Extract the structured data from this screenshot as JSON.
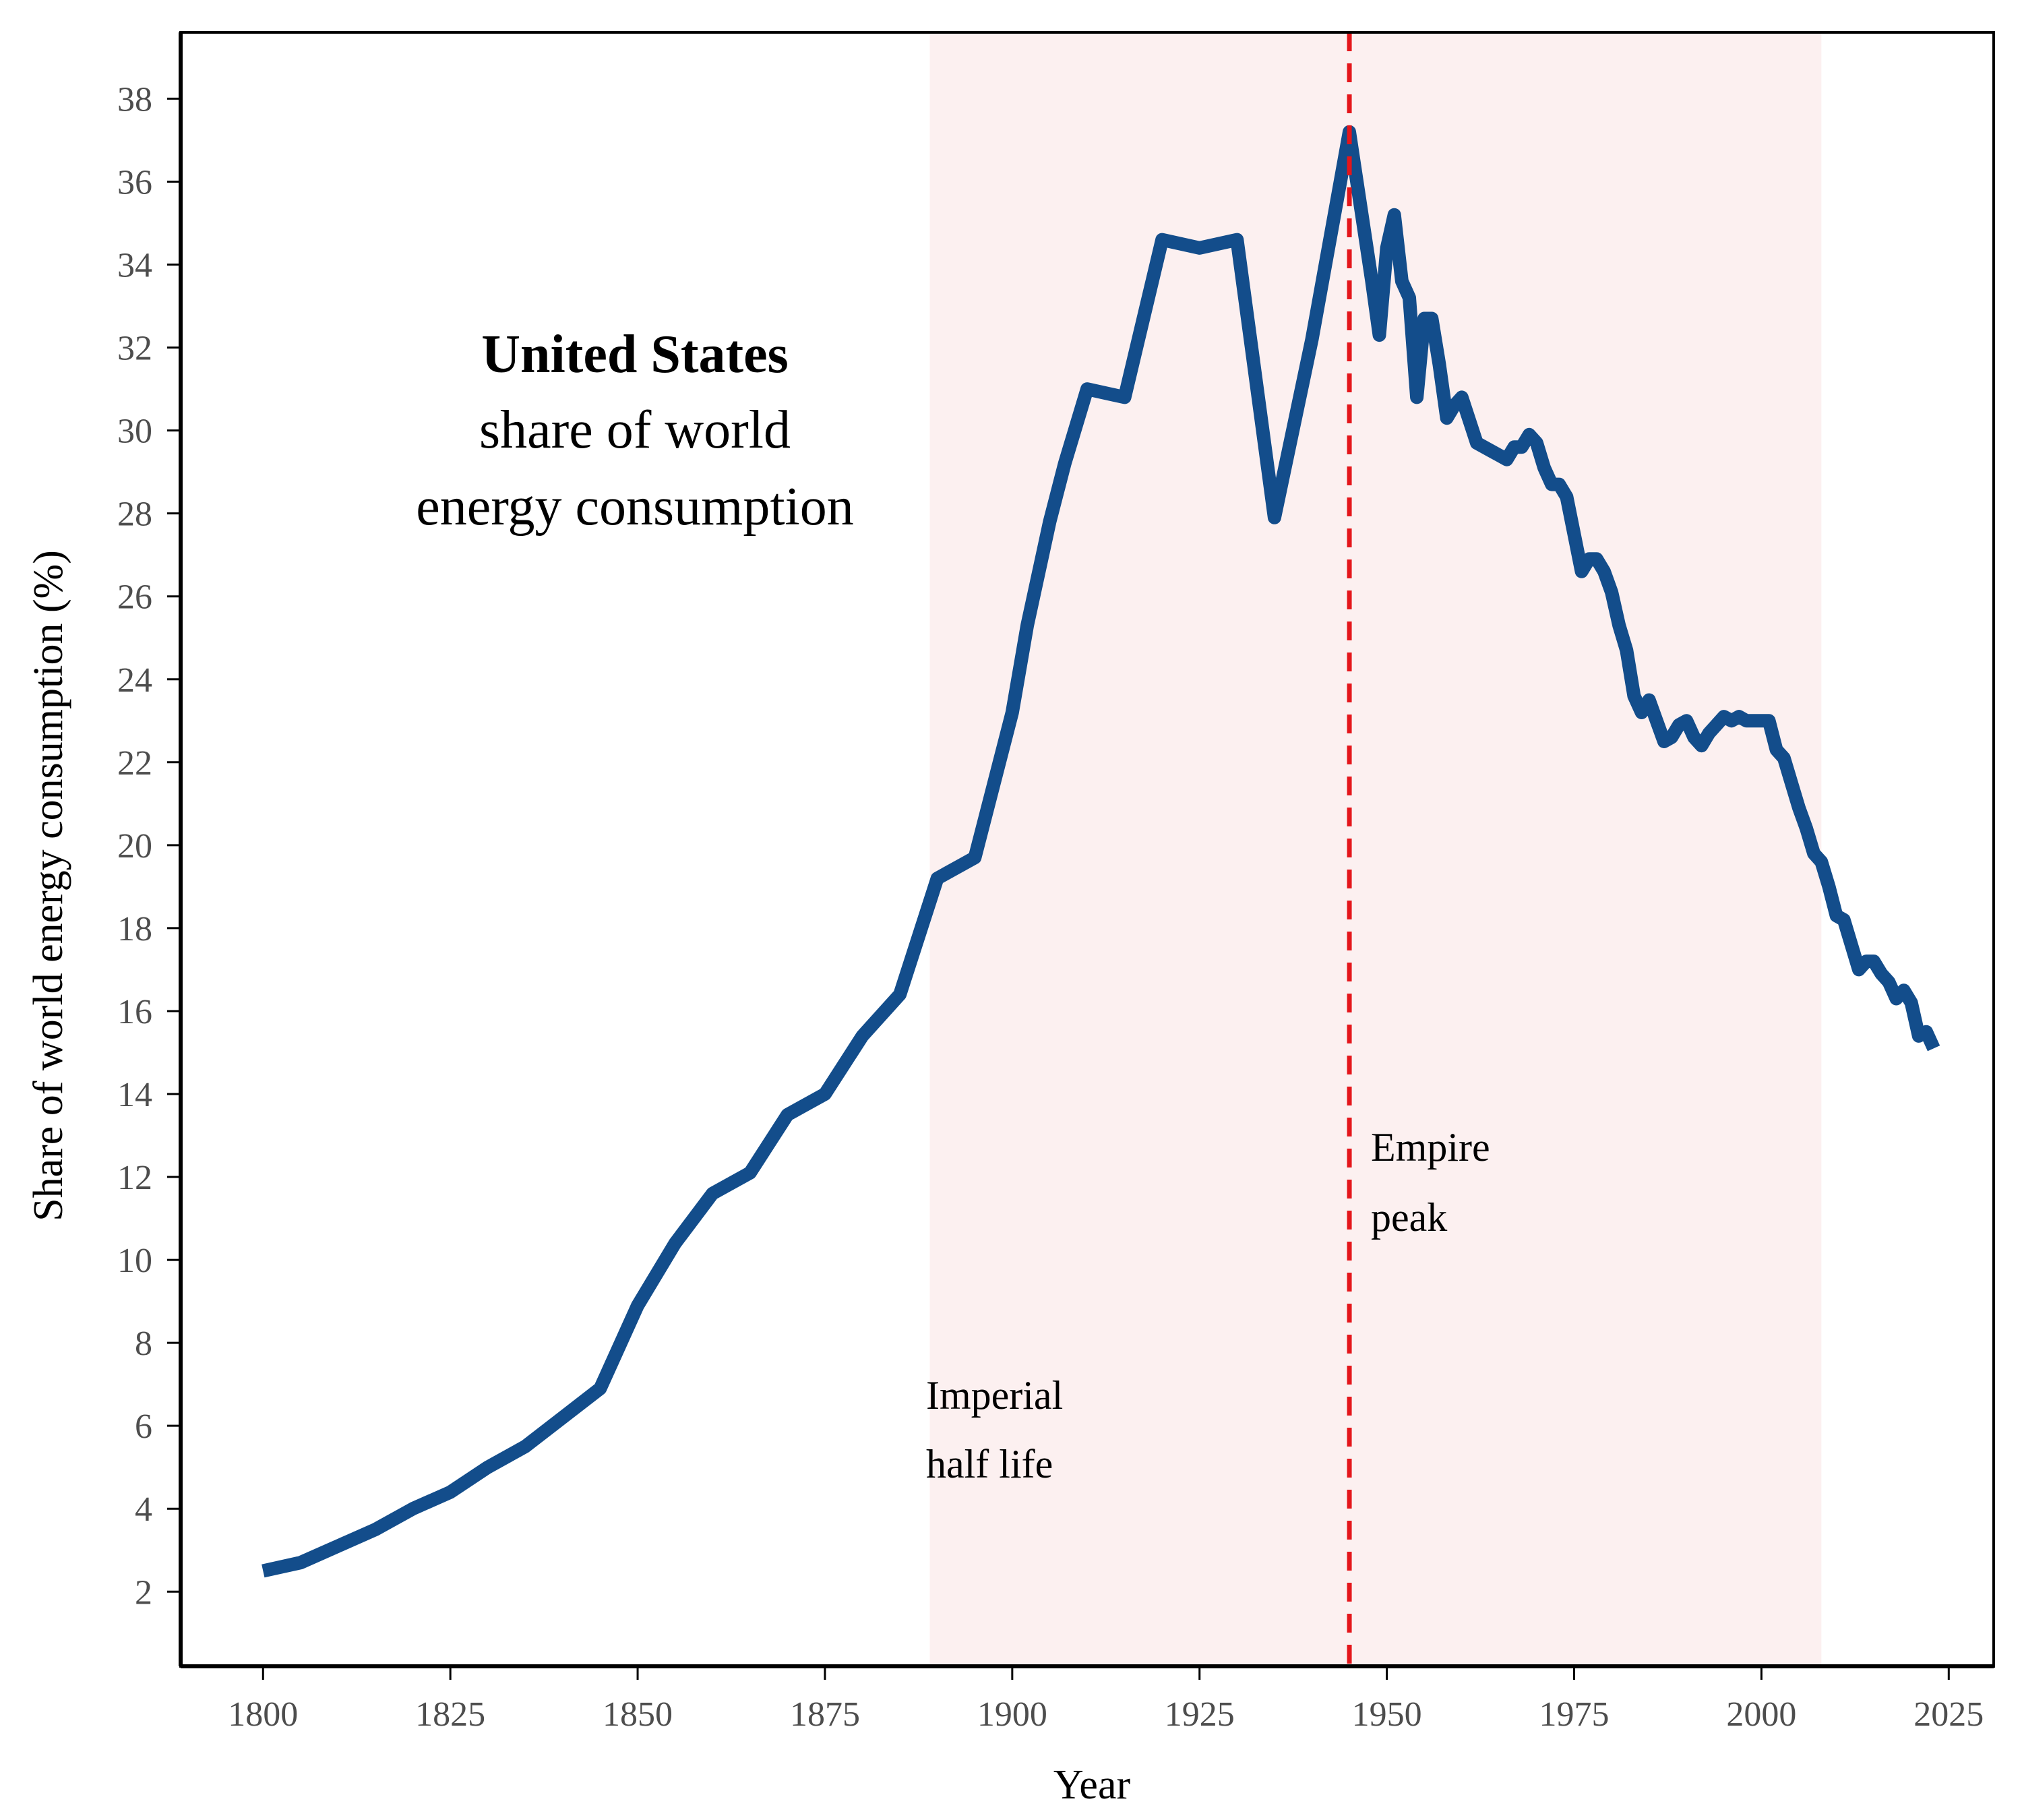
{
  "chart_data": {
    "type": "line",
    "title": "United States",
    "subtitle_lines": [
      "share of world",
      "energy consumption"
    ],
    "xlabel": "Year",
    "ylabel": "Share of world energy consumption (%)",
    "xlim": [
      1789,
      2031
    ],
    "ylim": [
      0.2,
      39.6
    ],
    "xticks": [
      1800,
      1825,
      1850,
      1875,
      1900,
      1925,
      1950,
      1975,
      2000,
      2025
    ],
    "yticks": [
      2,
      4,
      6,
      8,
      10,
      12,
      14,
      16,
      18,
      20,
      22,
      24,
      26,
      28,
      30,
      32,
      34,
      36,
      38
    ],
    "grid": false,
    "colors": {
      "line": "#134d8b",
      "peak_line": "#e4161b",
      "shade": "#fcf0f0"
    },
    "shaded_region": {
      "x_start": 1889,
      "x_end": 2008,
      "label_lines": [
        "Imperial",
        "half life"
      ]
    },
    "peak_marker": {
      "x": 1945,
      "label_lines": [
        "Empire",
        "peak"
      ]
    },
    "series": [
      {
        "x": [
          1800,
          1805,
          1810,
          1815,
          1820,
          1825,
          1830,
          1835,
          1840,
          1845,
          1850,
          1855,
          1860,
          1865,
          1870,
          1875,
          1880,
          1885,
          1890,
          1895,
          1900,
          1902,
          1905,
          1907,
          1910,
          1915,
          1920,
          1925,
          1930,
          1935,
          1940,
          1945,
          1948,
          1949,
          1950,
          1951,
          1952,
          1953,
          1954,
          1955,
          1956,
          1957,
          1958,
          1959,
          1960,
          1962,
          1964,
          1965,
          1966,
          1967,
          1968,
          1969,
          1970,
          1971,
          1972,
          1973,
          1974,
          1975,
          1976,
          1977,
          1978,
          1979,
          1980,
          1981,
          1982,
          1983,
          1984,
          1985,
          1986,
          1987,
          1988,
          1989,
          1990,
          1991,
          1992,
          1993,
          1994,
          1995,
          1996,
          1997,
          1998,
          1999,
          2000,
          2001,
          2002,
          2003,
          2004,
          2005,
          2006,
          2007,
          2008,
          2009,
          2010,
          2011,
          2012,
          2013,
          2014,
          2015,
          2016,
          2017,
          2018,
          2019,
          2020,
          2021,
          2022,
          2023
        ],
        "y": [
          2.5,
          2.7,
          3.1,
          3.5,
          4.0,
          4.4,
          5.0,
          5.5,
          6.2,
          6.9,
          8.9,
          10.4,
          11.6,
          12.1,
          13.5,
          14.0,
          15.4,
          16.4,
          19.2,
          19.7,
          23.2,
          25.3,
          27.8,
          29.2,
          31.0,
          30.8,
          34.6,
          34.4,
          34.6,
          27.9,
          32.2,
          37.2,
          33.6,
          32.3,
          34.4,
          35.2,
          33.6,
          33.2,
          30.8,
          32.7,
          32.7,
          31.6,
          30.3,
          30.6,
          30.8,
          29.7,
          29.5,
          29.4,
          29.3,
          29.6,
          29.6,
          29.9,
          29.7,
          29.1,
          28.7,
          28.7,
          28.4,
          27.5,
          26.6,
          26.9,
          26.9,
          26.6,
          26.1,
          25.3,
          24.7,
          23.6,
          23.2,
          23.5,
          23.0,
          22.5,
          22.6,
          22.9,
          23.0,
          22.6,
          22.4,
          22.7,
          22.9,
          23.1,
          23.0,
          23.1,
          23.0,
          23.0,
          23.0,
          23.0,
          22.3,
          22.1,
          21.5,
          20.9,
          20.4,
          19.8,
          19.6,
          19.0,
          18.3,
          18.2,
          17.6,
          17.0,
          17.2,
          17.2,
          16.9,
          16.7,
          16.3,
          16.5,
          16.2,
          15.4,
          15.5,
          15.1
        ]
      }
    ]
  }
}
